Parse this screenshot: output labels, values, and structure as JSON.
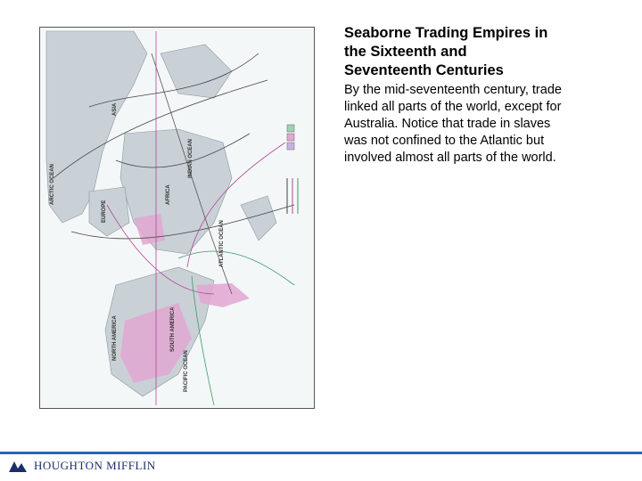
{
  "header": {
    "title_lines": [
      "Seaborne Trading Empires in",
      "the Sixteenth and",
      "Seventeenth Centuries"
    ]
  },
  "body": {
    "lines": [
      "By the mid-seventeenth century, trade",
      "linked all parts of the world, except for",
      "Australia. Notice that trade in slaves",
      "was not confined to the Atlantic but",
      "involved almost all parts of the world."
    ]
  },
  "map": {
    "labels": [
      "ASIA",
      "AFRICA",
      "EUROPE",
      "SOUTH AMERICA",
      "NORTH AMERICA",
      "ATLANTIC OCEAN",
      "PACIFIC OCEAN",
      "INDIAN OCEAN",
      "ARCTIC OCEAN"
    ]
  },
  "footer": {
    "logo": "HOUGHTON MIFFLIN"
  }
}
